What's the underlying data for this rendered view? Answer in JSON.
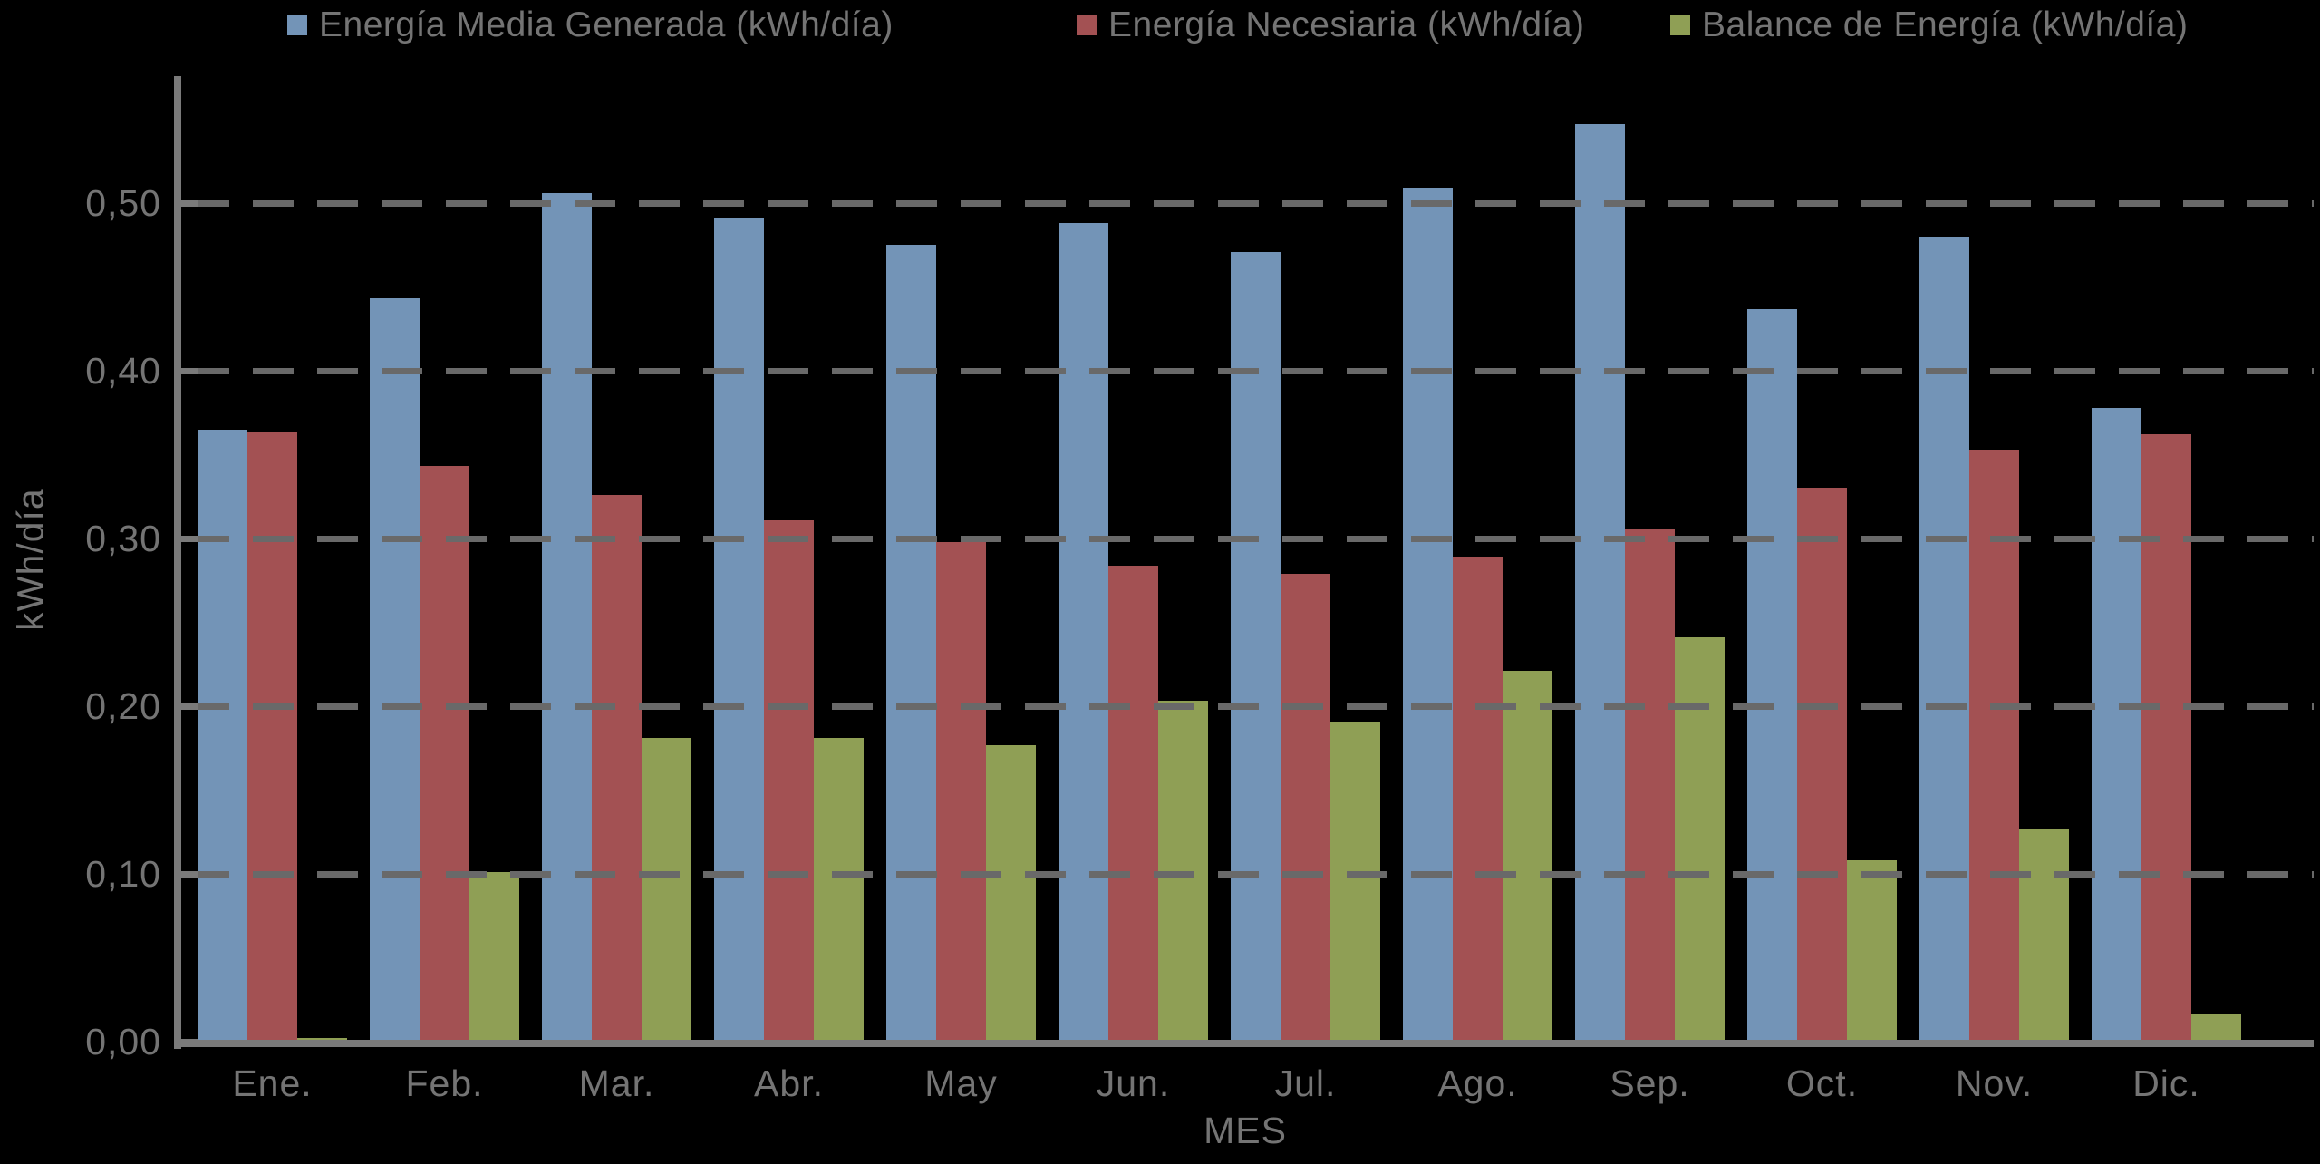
{
  "chart_data": {
    "type": "bar",
    "title": "",
    "categories": [
      "Ene.",
      "Feb.",
      "Mar.",
      "Abr.",
      "May",
      "Jun.",
      "Jul.",
      "Ago.",
      "Sep.",
      "Oct.",
      "Nov.",
      "Dic."
    ],
    "series": [
      {
        "name": "Energía Media Generada (kWh/día)",
        "color": "#7394b7",
        "values": [
          0.365,
          0.443,
          0.506,
          0.491,
          0.475,
          0.488,
          0.471,
          0.509,
          0.547,
          0.437,
          0.48,
          0.378
        ]
      },
      {
        "name": "Energía Necesiaria (kWh/día)",
        "color": "#a35153",
        "values": [
          0.363,
          0.343,
          0.326,
          0.311,
          0.298,
          0.284,
          0.279,
          0.289,
          0.306,
          0.33,
          0.353,
          0.362
        ]
      },
      {
        "name": "Balance de Energía (kWh/día)",
        "color": "#8f9f55",
        "values": [
          0.002,
          0.101,
          0.181,
          0.181,
          0.177,
          0.203,
          0.191,
          0.221,
          0.241,
          0.108,
          0.127,
          0.016
        ]
      }
    ],
    "xlabel": "MES",
    "ylabel": "kWh/día",
    "ylim": [
      0,
      0.575
    ],
    "ytick_interval": 0.1,
    "ytick_values": [
      0.0,
      0.1,
      0.2,
      0.3,
      0.4,
      0.5
    ],
    "ytick_labels": [
      "0,00",
      "0,10",
      "0,20",
      "0,30",
      "0,40",
      "0,50"
    ],
    "grid": "horizontal-dashed",
    "legend_position": "top"
  },
  "colors": {
    "background": "#000000",
    "text": "#747474",
    "gridline": "#696969",
    "axis": "#7a7a7a"
  }
}
